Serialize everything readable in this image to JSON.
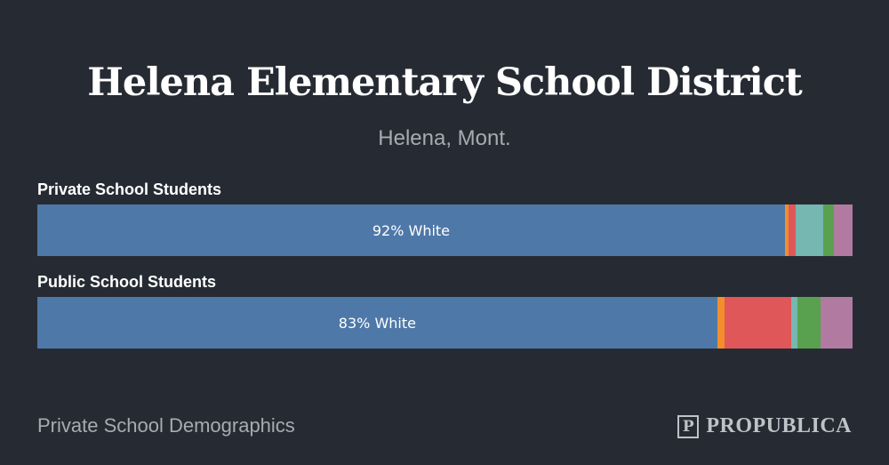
{
  "header": {
    "title": "Helena Elementary School District",
    "subtitle": "Helena, Mont."
  },
  "footer": {
    "source_label": "Private School Demographics",
    "logo_mark": "P",
    "logo_text": "PROPUBLICA"
  },
  "colors": {
    "background": "#262b33",
    "white": "#4e78a8",
    "orange": "#f28e2c",
    "red": "#e05759",
    "teal": "#76b7b2",
    "green": "#59a14f",
    "purple": "#b07aa1"
  },
  "chart_data": {
    "type": "bar",
    "orientation": "horizontal-stacked-100",
    "xlim": [
      0,
      100
    ],
    "segment_colors": [
      "#4e78a8",
      "#f28e2c",
      "#e05759",
      "#76b7b2",
      "#59a14f",
      "#b07aa1"
    ],
    "groups": [
      {
        "label": "Private School Students",
        "bar_label": "92% White",
        "values": [
          91.7,
          0.4,
          0.9,
          3.4,
          1.3,
          2.3
        ]
      },
      {
        "label": "Public School Students",
        "bar_label": "83% White",
        "values": [
          83.4,
          0.9,
          8.2,
          0.7,
          2.9,
          3.9
        ]
      }
    ]
  }
}
